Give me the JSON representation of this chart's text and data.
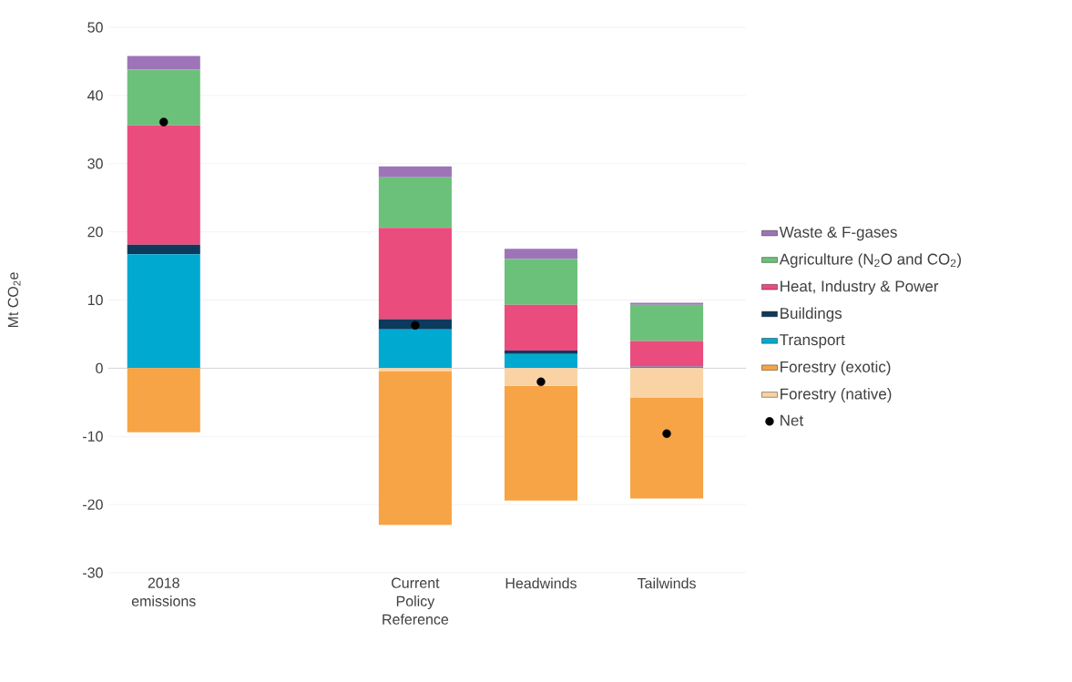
{
  "chart_data": {
    "type": "bar",
    "stacked": true,
    "ylabel": "Mt CO$_{2}$e",
    "categories": [
      "2018 emissions",
      null,
      "Current Policy Reference",
      "Headwinds",
      "Tailwinds"
    ],
    "ylim": [
      -30,
      50
    ],
    "yticks": [
      -30,
      -20,
      -10,
      0,
      10,
      20,
      30,
      40,
      50
    ],
    "grid": "y",
    "legend": "right",
    "series": [
      {
        "name": "Transport",
        "color": "#00a9d0",
        "values": [
          16.7,
          null,
          5.7,
          2.1,
          0.2
        ]
      },
      {
        "name": "Buildings",
        "color": "#0c3a5c",
        "values": [
          1.4,
          null,
          1.5,
          0.5,
          0
        ]
      },
      {
        "name": "Heat, Industry & Power",
        "color": "#ea4c7d",
        "values": [
          17.5,
          null,
          13.4,
          6.7,
          3.8
        ]
      },
      {
        "name": "Agriculture (N$_{2}$O and CO$_{2}$)",
        "color": "#6cc17a",
        "values": [
          8.2,
          null,
          7.4,
          6.7,
          5.3
        ]
      },
      {
        "name": "Waste & F-gases",
        "color": "#9e74b8",
        "values": [
          2.0,
          null,
          1.6,
          1.5,
          0.3
        ]
      },
      {
        "name": "Forestry (native)",
        "color": "#fad3a5",
        "values": [
          0,
          null,
          -0.5,
          -2.6,
          -4.3
        ]
      },
      {
        "name": "Forestry (exotic)",
        "color": "#f6a445",
        "values": [
          -9.4,
          null,
          -22.5,
          -16.8,
          -14.8
        ]
      },
      {
        "name": "Net",
        "type": "scatter",
        "marker": "circle",
        "color": "#000000",
        "values": [
          36.1,
          null,
          6.3,
          -2.0,
          -9.6
        ]
      }
    ]
  }
}
